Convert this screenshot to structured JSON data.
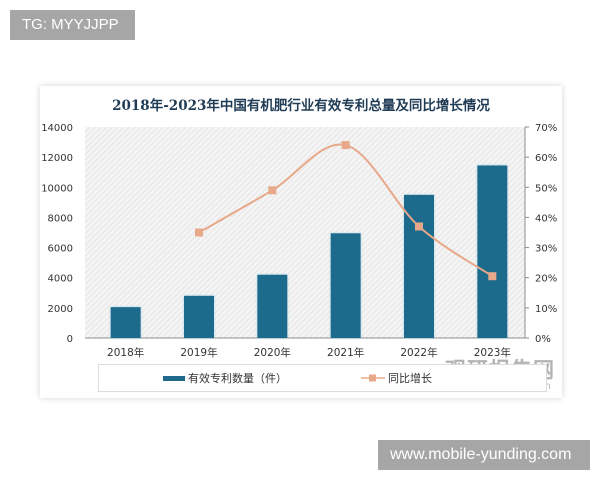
{
  "overlay": {
    "top_left_tag": "TG: MYYJJPP",
    "bottom_right_tag": "www.mobile-yunding.com"
  },
  "watermark": {
    "cn": "观研报告网",
    "en": "chinabaogao.com"
  },
  "colors": {
    "bar": "#1f6a8c",
    "line": "#e8a98a",
    "title": "#1f3b55"
  },
  "chart_data": {
    "type": "bar",
    "title": "2018年-2023年中国有机肥行业有效专利总量及同比增长情况",
    "categories": [
      "2018年",
      "2019年",
      "2020年",
      "2021年",
      "2022年",
      "2023年"
    ],
    "series": [
      {
        "name": "有效专利数量（件）",
        "type": "bar",
        "axis": "left",
        "values": [
          2050,
          2800,
          4200,
          6950,
          9500,
          11450
        ]
      },
      {
        "name": "同比增长",
        "type": "line",
        "axis": "right",
        "unit": "%",
        "values": [
          null,
          35,
          49,
          64,
          37,
          20.5
        ]
      }
    ],
    "left_axis": {
      "ticks": [
        "0",
        "2000",
        "4000",
        "6000",
        "8000",
        "10000",
        "12000",
        "14000"
      ],
      "ylim": [
        0,
        14000
      ]
    },
    "right_axis": {
      "ticks": [
        "0%",
        "10%",
        "20%",
        "30%",
        "40%",
        "50%",
        "60%",
        "70%"
      ],
      "ylim": [
        0,
        70
      ]
    },
    "xlabel": "",
    "ylabel": "",
    "legend": {
      "position": "bottom",
      "entries": [
        "有效专利数量（件）",
        "同比增长"
      ]
    },
    "grid": false
  }
}
